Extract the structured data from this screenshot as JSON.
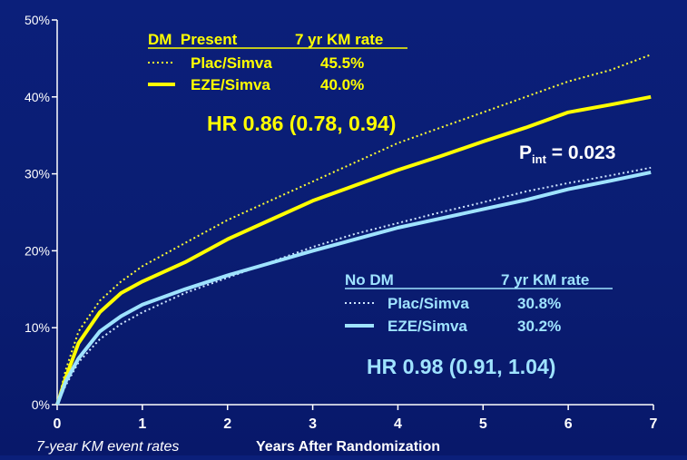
{
  "chart_data": {
    "type": "line",
    "title": "",
    "xlabel": "Years After Randomization",
    "ylabel": "",
    "xlim": [
      0,
      7
    ],
    "ylim": [
      0,
      50
    ],
    "x_ticks": [
      "0",
      "1",
      "2",
      "3",
      "4",
      "5",
      "6",
      "7"
    ],
    "y_ticks": [
      "0%",
      "10%",
      "20%",
      "30%",
      "40%",
      "50%"
    ],
    "grid": false,
    "footnote": "7-year KM event rates",
    "series": [
      {
        "group": "DM",
        "name": "Plac/Simva",
        "style": "dotted",
        "color": "#ffff33",
        "x": [
          0,
          0.1,
          0.25,
          0.5,
          0.75,
          1,
          1.5,
          2,
          2.5,
          3,
          3.5,
          4,
          4.5,
          5,
          5.5,
          6,
          6.5,
          6.97
        ],
        "y": [
          0,
          4.5,
          9.5,
          13.5,
          16,
          18,
          21,
          24,
          26.5,
          29,
          31.5,
          34,
          36,
          38,
          40,
          42,
          43.5,
          45.5
        ]
      },
      {
        "group": "DM",
        "name": "EZE/Simva",
        "style": "solid",
        "color": "#ffff00",
        "x": [
          0,
          0.1,
          0.25,
          0.5,
          0.75,
          1,
          1.5,
          2,
          2.5,
          3,
          3.5,
          4,
          4.5,
          5,
          5.5,
          6,
          6.5,
          6.97
        ],
        "y": [
          0,
          3.5,
          8,
          12,
          14.5,
          16,
          18.5,
          21.5,
          24,
          26.5,
          28.5,
          30.5,
          32.3,
          34.2,
          36,
          38,
          39,
          40
        ]
      },
      {
        "group": "No DM",
        "name": "Plac/Simva",
        "style": "dotted",
        "color": "#cfe6ff",
        "x": [
          0,
          0.1,
          0.25,
          0.5,
          0.75,
          1,
          1.5,
          2,
          2.5,
          3,
          3.5,
          4,
          4.5,
          5,
          5.5,
          6,
          6.5,
          6.97
        ],
        "y": [
          0,
          2.5,
          5.5,
          8.5,
          10.5,
          12,
          14.5,
          16.5,
          18.5,
          20.5,
          22.2,
          23.6,
          25,
          26.3,
          27.7,
          28.8,
          29.8,
          30.8
        ]
      },
      {
        "group": "No DM",
        "name": "EZE/Simva",
        "style": "solid",
        "color": "#9fe3ff",
        "x": [
          0,
          0.1,
          0.25,
          0.5,
          0.75,
          1,
          1.5,
          2,
          2.5,
          3,
          3.5,
          4,
          4.5,
          5,
          5.5,
          6,
          6.5,
          6.97
        ],
        "y": [
          0,
          3,
          6,
          9.5,
          11.5,
          13,
          15,
          16.8,
          18.4,
          20,
          21.5,
          23,
          24.2,
          25.4,
          26.6,
          28,
          29.1,
          30.2
        ]
      }
    ],
    "annotations": {
      "dm_header_group": "DM  Present",
      "dm_header_rate": "7 yr KM rate",
      "dm_rows": [
        {
          "label": "Plac/Simva",
          "rate": "45.5%"
        },
        {
          "label": "EZE/Simva",
          "rate": "40.0%"
        }
      ],
      "dm_hr": "HR 0.86 (0.78, 0.94)",
      "pint_label": "P",
      "pint_sub": "int",
      "pint_value": " = 0.023",
      "nodm_header_group": "No DM",
      "nodm_header_rate": "7 yr KM rate",
      "nodm_rows": [
        {
          "label": "Plac/Simva",
          "rate": "30.8%"
        },
        {
          "label": "EZE/Simva",
          "rate": "30.2%"
        }
      ],
      "nodm_hr": "HR 0.98 (0.91, 1.04)"
    }
  }
}
